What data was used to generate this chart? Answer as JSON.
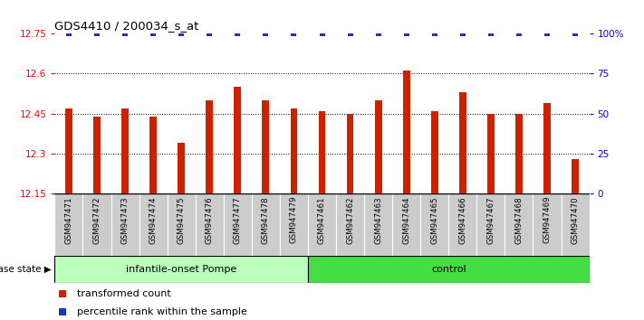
{
  "title": "GDS4410 / 200034_s_at",
  "samples": [
    "GSM947471",
    "GSM947472",
    "GSM947473",
    "GSM947474",
    "GSM947475",
    "GSM947476",
    "GSM947477",
    "GSM947478",
    "GSM947479",
    "GSM947461",
    "GSM947462",
    "GSM947463",
    "GSM947464",
    "GSM947465",
    "GSM947466",
    "GSM947467",
    "GSM947468",
    "GSM947469",
    "GSM947470"
  ],
  "bar_values": [
    12.47,
    12.44,
    12.47,
    12.44,
    12.34,
    12.5,
    12.55,
    12.5,
    12.47,
    12.46,
    12.45,
    12.5,
    12.61,
    12.46,
    12.53,
    12.45,
    12.45,
    12.49,
    12.28
  ],
  "percentile_values": [
    100,
    100,
    100,
    100,
    100,
    100,
    100,
    100,
    100,
    100,
    100,
    100,
    100,
    100,
    100,
    100,
    100,
    100,
    100
  ],
  "bar_color": "#cc2200",
  "percentile_color": "#2233bb",
  "ylim_left": [
    12.15,
    12.75
  ],
  "ylim_right": [
    0,
    100
  ],
  "yticks_left": [
    12.15,
    12.3,
    12.45,
    12.6,
    12.75
  ],
  "ytick_labels_left": [
    "12.15",
    "12.3",
    "12.45",
    "12.6",
    "12.75"
  ],
  "yticks_right": [
    0,
    25,
    50,
    75,
    100
  ],
  "ytick_labels_right": [
    "0",
    "25",
    "50",
    "75",
    "100%"
  ],
  "groups": [
    {
      "label": "infantile-onset Pompe",
      "start": 0,
      "end": 9,
      "color": "#bbffbb"
    },
    {
      "label": "control",
      "start": 9,
      "end": 19,
      "color": "#44dd44"
    }
  ],
  "group_label_prefix": "disease state",
  "legend_items": [
    {
      "label": "transformed count",
      "color": "#cc2200"
    },
    {
      "label": "percentile rank within the sample",
      "color": "#2233bb"
    }
  ],
  "bar_width": 0.25,
  "dotted_grid_values": [
    12.3,
    12.45,
    12.6
  ],
  "sample_box_color": "#cccccc",
  "n_pompe": 9,
  "n_total": 19
}
